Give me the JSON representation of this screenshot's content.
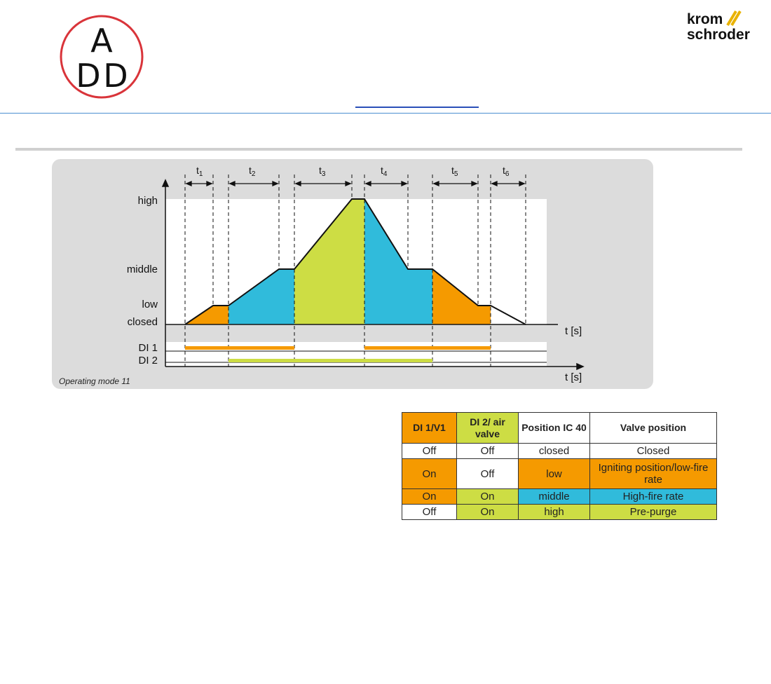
{
  "header": {
    "logo_left": "ADD",
    "logo_right": [
      "krom",
      "schroder"
    ],
    "link_text": ""
  },
  "diagram": {
    "t_labels": [
      "t",
      "t",
      "t",
      "t",
      "t",
      "t"
    ],
    "t_subs": [
      "1",
      "2",
      "3",
      "4",
      "5",
      "6"
    ],
    "y_labels": [
      "high",
      "middle",
      "low",
      "closed"
    ],
    "axis_label": "t [s]",
    "signal_labels": [
      "DI 1",
      "DI 2"
    ],
    "caption": "Operating mode 11",
    "colors": {
      "orange": "#f59a00",
      "blue": "#30bbdb",
      "green": "#cddd44",
      "panel": "#dcdcdc"
    }
  },
  "table": {
    "headers": [
      "DI 1/V1",
      "DI 2/ air valve",
      "Position IC 40",
      "Valve position"
    ],
    "rows": [
      [
        "Off",
        "Off",
        "closed",
        "Closed"
      ],
      [
        "On",
        "Off",
        "low",
        "Igniting position/low-fire rate"
      ],
      [
        "On",
        "On",
        "middle",
        "High-fire rate"
      ],
      [
        "Off",
        "On",
        "high",
        "Pre-purge"
      ]
    ]
  }
}
